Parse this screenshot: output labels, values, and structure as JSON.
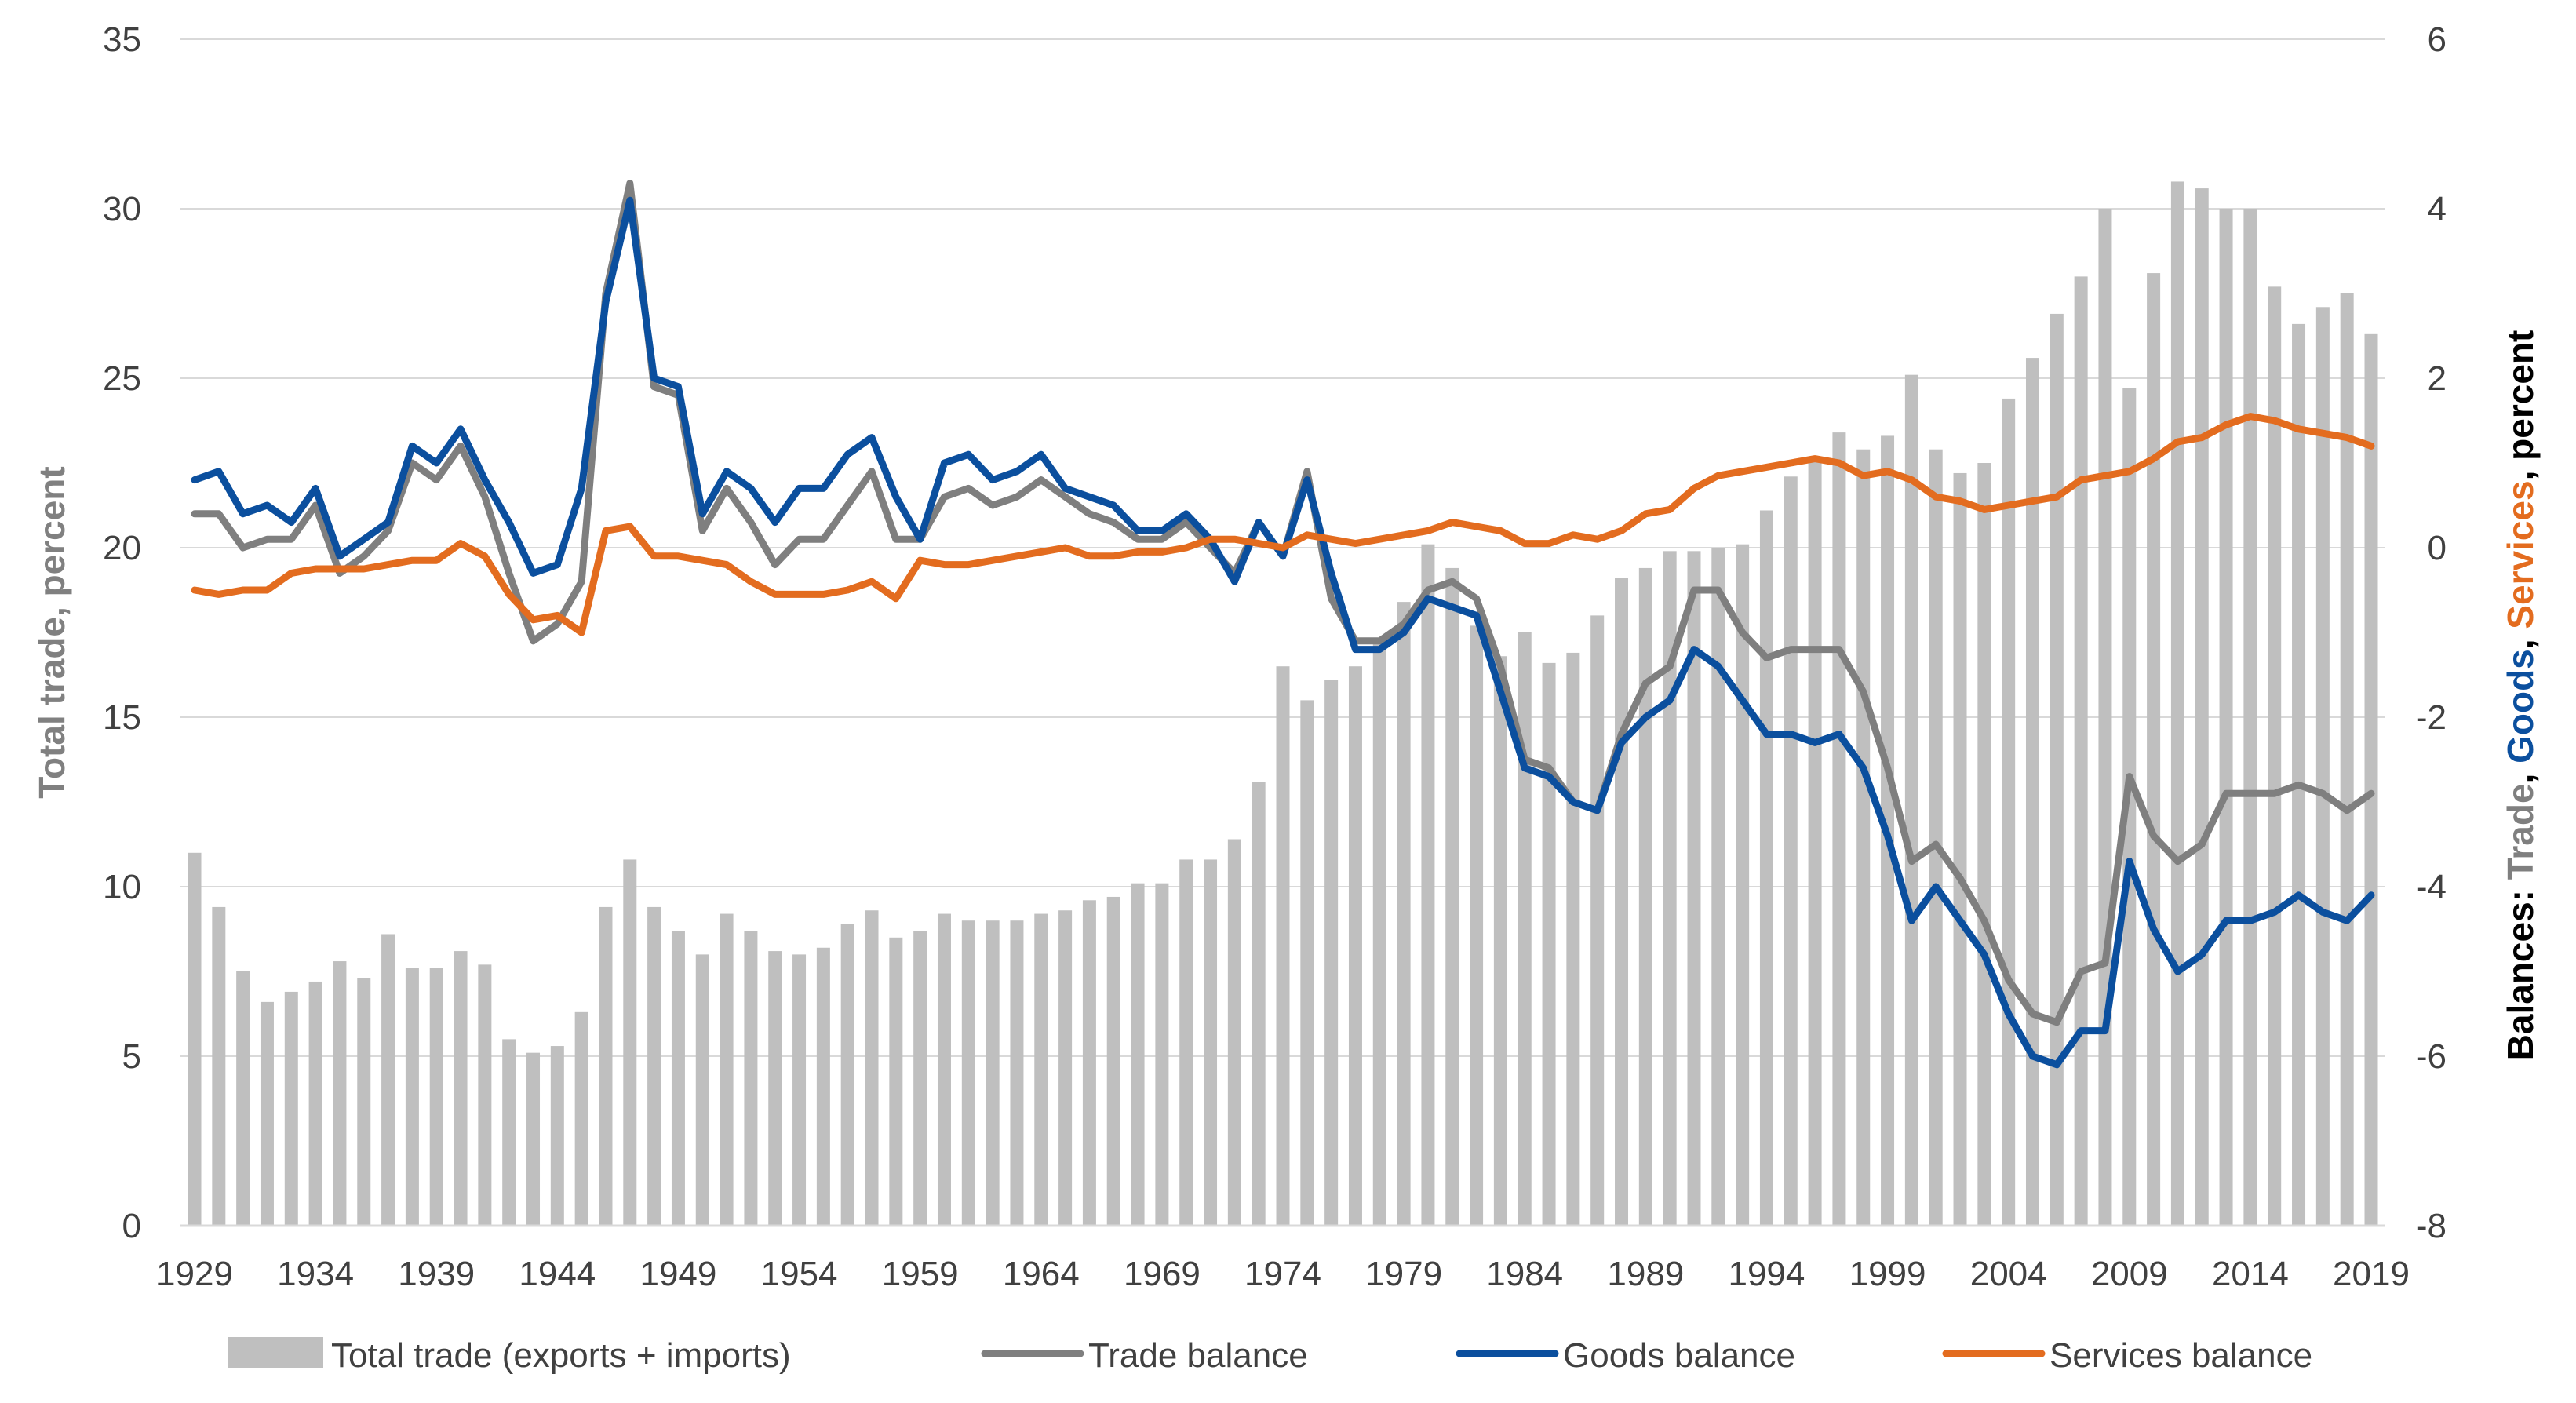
{
  "chart_data": {
    "type": "bar+line",
    "x": [
      1929,
      1930,
      1931,
      1932,
      1933,
      1934,
      1935,
      1936,
      1937,
      1938,
      1939,
      1940,
      1941,
      1942,
      1943,
      1944,
      1945,
      1946,
      1947,
      1948,
      1949,
      1950,
      1951,
      1952,
      1953,
      1954,
      1955,
      1956,
      1957,
      1958,
      1959,
      1960,
      1961,
      1962,
      1963,
      1964,
      1965,
      1966,
      1967,
      1968,
      1969,
      1970,
      1971,
      1972,
      1973,
      1974,
      1975,
      1976,
      1977,
      1978,
      1979,
      1980,
      1981,
      1982,
      1983,
      1984,
      1985,
      1986,
      1987,
      1988,
      1989,
      1990,
      1991,
      1992,
      1993,
      1994,
      1995,
      1996,
      1997,
      1998,
      1999,
      2000,
      2001,
      2002,
      2003,
      2004,
      2005,
      2006,
      2007,
      2008,
      2009,
      2010,
      2011,
      2012,
      2013,
      2014,
      2015,
      2016,
      2017,
      2018,
      2019
    ],
    "x_ticks": [
      "1929",
      "1934",
      "1939",
      "1944",
      "1949",
      "1954",
      "1959",
      "1964",
      "1969",
      "1974",
      "1979",
      "1984",
      "1989",
      "1994",
      "1999",
      "2004",
      "2009",
      "2014",
      "2019"
    ],
    "left_axis": {
      "label": "Total trade, percent",
      "ylim": [
        0,
        35
      ],
      "ticks": [
        "0",
        "5",
        "10",
        "15",
        "20",
        "25",
        "30",
        "35"
      ]
    },
    "right_axis": {
      "label_parts": [
        {
          "text": "Balances: ",
          "color": "#000000"
        },
        {
          "text": "Trade",
          "color": "#7f7f7f"
        },
        {
          "text": ", ",
          "color": "#000000"
        },
        {
          "text": "Goods",
          "color": "#0b4f9e"
        },
        {
          "text": ", ",
          "color": "#000000"
        },
        {
          "text": "Services",
          "color": "#e36c1f"
        },
        {
          "text": ", percent",
          "color": "#000000"
        }
      ],
      "ylim": [
        -8,
        6
      ],
      "ticks": [
        "-8",
        "-6",
        "-4",
        "-2",
        "0",
        "2",
        "4",
        "6"
      ]
    },
    "bars": {
      "name": "Total trade (exports + imports)",
      "color": "#bfbfbf",
      "values": [
        11.0,
        9.4,
        7.5,
        6.6,
        6.9,
        7.2,
        7.8,
        7.3,
        8.6,
        7.6,
        7.6,
        8.1,
        7.7,
        5.5,
        5.1,
        5.3,
        6.3,
        9.4,
        10.8,
        9.4,
        8.7,
        8.0,
        9.2,
        8.7,
        8.1,
        8.0,
        8.2,
        8.9,
        9.3,
        8.5,
        8.7,
        9.2,
        9.0,
        9.0,
        9.0,
        9.2,
        9.3,
        9.6,
        9.7,
        10.1,
        10.1,
        10.8,
        10.8,
        11.4,
        13.1,
        16.5,
        15.5,
        16.1,
        16.5,
        17.3,
        18.4,
        20.1,
        19.4,
        17.7,
        16.8,
        17.5,
        16.6,
        16.9,
        18.0,
        19.1,
        19.4,
        19.9,
        19.9,
        20.0,
        20.1,
        21.1,
        22.1,
        22.6,
        23.4,
        22.9,
        23.3,
        25.1,
        22.9,
        22.2,
        22.5,
        24.4,
        25.6,
        26.9,
        28.0,
        30.0,
        24.7,
        28.1,
        30.8,
        30.6,
        30.0,
        30.0,
        27.7,
        26.6,
        27.1,
        27.5,
        26.3
      ]
    },
    "series": [
      {
        "name": "Trade balance",
        "color": "#7f7f7f",
        "values": [
          0.4,
          0.4,
          0.0,
          0.1,
          0.1,
          0.5,
          -0.3,
          -0.1,
          0.2,
          1.0,
          0.8,
          1.2,
          0.6,
          -0.3,
          -1.1,
          -0.9,
          -0.4,
          3.0,
          4.3,
          1.9,
          1.8,
          0.2,
          0.7,
          0.3,
          -0.2,
          0.1,
          0.1,
          0.5,
          0.9,
          0.1,
          0.1,
          0.6,
          0.7,
          0.5,
          0.6,
          0.8,
          0.6,
          0.4,
          0.3,
          0.1,
          0.1,
          0.3,
          0.0,
          -0.3,
          0.3,
          -0.1,
          0.9,
          -0.6,
          -1.1,
          -1.1,
          -0.9,
          -0.5,
          -0.4,
          -0.6,
          -1.4,
          -2.5,
          -2.6,
          -3.0,
          -3.1,
          -2.2,
          -1.6,
          -1.4,
          -0.5,
          -0.5,
          -1.0,
          -1.3,
          -1.2,
          -1.2,
          -1.2,
          -1.7,
          -2.6,
          -3.7,
          -3.5,
          -3.9,
          -4.4,
          -5.1,
          -5.5,
          -5.6,
          -5.0,
          -4.9,
          -2.7,
          -3.4,
          -3.7,
          -3.5,
          -2.9,
          -2.9,
          -2.9,
          -2.8,
          -2.9,
          -3.1,
          -2.9
        ]
      },
      {
        "name": "Goods balance",
        "color": "#0b4f9e",
        "values": [
          0.8,
          0.9,
          0.4,
          0.5,
          0.3,
          0.7,
          -0.1,
          0.1,
          0.3,
          1.2,
          1.0,
          1.4,
          0.8,
          0.3,
          -0.3,
          -0.2,
          0.7,
          2.9,
          4.1,
          2.0,
          1.9,
          0.4,
          0.9,
          0.7,
          0.3,
          0.7,
          0.7,
          1.1,
          1.3,
          0.6,
          0.1,
          1.0,
          1.1,
          0.8,
          0.9,
          1.1,
          0.7,
          0.6,
          0.5,
          0.2,
          0.2,
          0.4,
          0.1,
          -0.4,
          0.3,
          -0.1,
          0.8,
          -0.3,
          -1.2,
          -1.2,
          -1.0,
          -0.6,
          -0.7,
          -0.8,
          -1.7,
          -2.6,
          -2.7,
          -3.0,
          -3.1,
          -2.3,
          -2.0,
          -1.8,
          -1.2,
          -1.4,
          -1.8,
          -2.2,
          -2.2,
          -2.3,
          -2.2,
          -2.6,
          -3.4,
          -4.4,
          -4.0,
          -4.4,
          -4.8,
          -5.5,
          -6.0,
          -6.1,
          -5.7,
          -5.7,
          -3.7,
          -4.5,
          -5.0,
          -4.8,
          -4.4,
          -4.4,
          -4.3,
          -4.1,
          -4.3,
          -4.4,
          -4.1
        ]
      },
      {
        "name": "Services balance",
        "color": "#e36c1f",
        "values": [
          -0.5,
          -0.55,
          -0.5,
          -0.5,
          -0.3,
          -0.25,
          -0.25,
          -0.25,
          -0.2,
          -0.15,
          -0.15,
          0.05,
          -0.1,
          -0.55,
          -0.85,
          -0.8,
          -1.0,
          0.2,
          0.25,
          -0.1,
          -0.1,
          -0.15,
          -0.2,
          -0.4,
          -0.55,
          -0.55,
          -0.55,
          -0.5,
          -0.4,
          -0.6,
          -0.15,
          -0.2,
          -0.2,
          -0.15,
          -0.1,
          -0.05,
          0.0,
          -0.1,
          -0.1,
          -0.05,
          -0.05,
          0.0,
          0.1,
          0.1,
          0.05,
          0.0,
          0.15,
          0.1,
          0.05,
          0.1,
          0.15,
          0.2,
          0.3,
          0.25,
          0.2,
          0.05,
          0.05,
          0.15,
          0.1,
          0.2,
          0.4,
          0.45,
          0.7,
          0.85,
          0.9,
          0.95,
          1.0,
          1.05,
          1.0,
          0.85,
          0.9,
          0.8,
          0.6,
          0.55,
          0.45,
          0.5,
          0.55,
          0.6,
          0.8,
          0.85,
          0.9,
          1.05,
          1.25,
          1.3,
          1.45,
          1.55,
          1.5,
          1.4,
          1.35,
          1.3,
          1.2
        ]
      }
    ],
    "legend_position": "bottom",
    "grid": "horizontal"
  }
}
